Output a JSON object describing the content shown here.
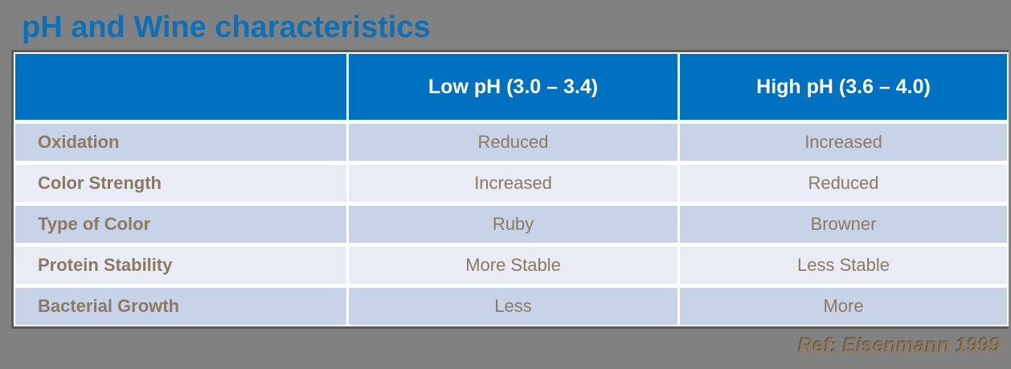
{
  "page": {
    "background_color": "#818181"
  },
  "title": {
    "text": "pH and Wine characteristics",
    "color": "#0f6fb6"
  },
  "table": {
    "header": {
      "col1": "",
      "low": "Low pH (3.0 – 3.4)",
      "high": "High pH (3.6 – 4.0)",
      "background_color": "#0070c0",
      "text_color": "#ffffff"
    },
    "rows": [
      {
        "label": "Oxidation",
        "low": "Reduced",
        "high": "Increased"
      },
      {
        "label": "Color Strength",
        "low": "Increased",
        "high": "Reduced"
      },
      {
        "label": "Type of Color",
        "low": "Ruby",
        "high": "Browner"
      },
      {
        "label": "Protein Stability",
        "low": "More Stable",
        "high": "Less Stable"
      },
      {
        "label": "Bacterial Growth",
        "low": "Less",
        "high": "More"
      }
    ],
    "row_background_odd": "#c9d3e8",
    "row_background_even": "#e9ecf4",
    "body_text_color": "#8b7a63",
    "border_color": "#5a5a5a"
  },
  "footer": {
    "reference": "Ref: Eisenmann 1999",
    "color": "#8d7b61"
  }
}
